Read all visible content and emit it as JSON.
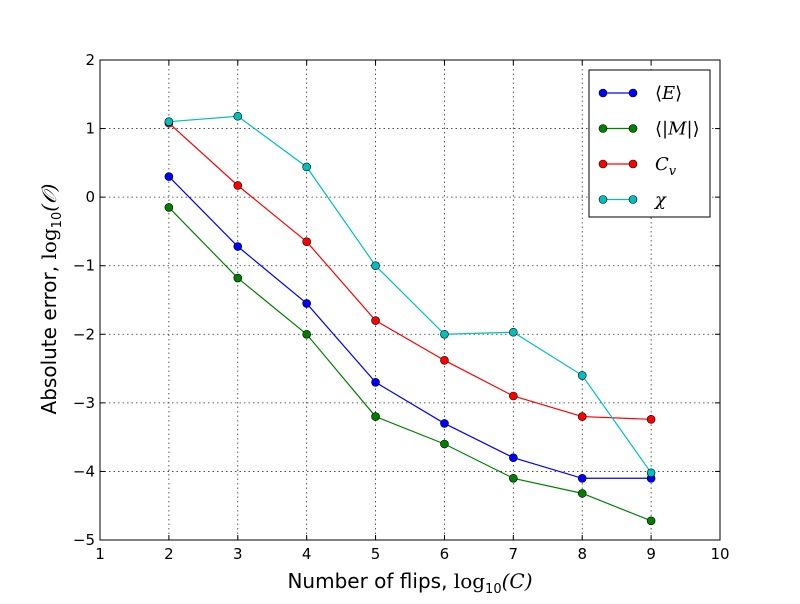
{
  "chart_data": {
    "type": "line",
    "title": "",
    "xlabel_text": "Number of flips, ",
    "xlabel_math": "log",
    "xlabel_sub": "10",
    "xlabel_arg": "(C)",
    "ylabel_text": "Absolute error, ",
    "ylabel_math": "log",
    "ylabel_sub": "10",
    "ylabel_arg": "(𝒪)",
    "xlim": [
      1,
      10
    ],
    "ylim": [
      -5,
      2
    ],
    "x_ticks": [
      1,
      2,
      3,
      4,
      5,
      6,
      7,
      8,
      9,
      10
    ],
    "y_ticks": [
      -5,
      -4,
      -3,
      -2,
      -1,
      0,
      1,
      2
    ],
    "x_tick_labels": [
      "1",
      "2",
      "3",
      "4",
      "5",
      "6",
      "7",
      "8",
      "9",
      "10"
    ],
    "y_tick_labels": [
      "−5",
      "−4",
      "−3",
      "−2",
      "−1",
      "0",
      "1",
      "2"
    ],
    "grid": true,
    "legend_position": "top-right",
    "x": [
      2,
      3,
      4,
      5,
      6,
      7,
      8,
      9
    ],
    "series": [
      {
        "name": "⟨E⟩",
        "legend_parts": [
          "⟨",
          "E",
          "⟩"
        ],
        "color": "#0000ff",
        "values": [
          0.3,
          -0.72,
          -1.55,
          -2.7,
          -3.3,
          -3.8,
          -4.1,
          -4.1
        ]
      },
      {
        "name": "⟨|M|⟩",
        "legend_parts": [
          "⟨|",
          "M",
          "|⟩"
        ],
        "color": "#008000",
        "values": [
          -0.15,
          -1.18,
          -2.0,
          -3.2,
          -3.6,
          -4.1,
          -4.32,
          -4.72
        ]
      },
      {
        "name": "Cv",
        "legend_parts": [
          "",
          "C",
          ""
        ],
        "legend_sub": "v",
        "color": "#ff0000",
        "values": [
          1.08,
          0.17,
          -0.65,
          -1.8,
          -2.38,
          -2.9,
          -3.2,
          -3.24
        ]
      },
      {
        "name": "χ",
        "legend_parts": [
          "",
          "χ",
          ""
        ],
        "color": "#00bfbf",
        "values": [
          1.1,
          1.18,
          0.44,
          -1.0,
          -2.0,
          -1.97,
          -2.6,
          -4.02
        ]
      }
    ]
  }
}
